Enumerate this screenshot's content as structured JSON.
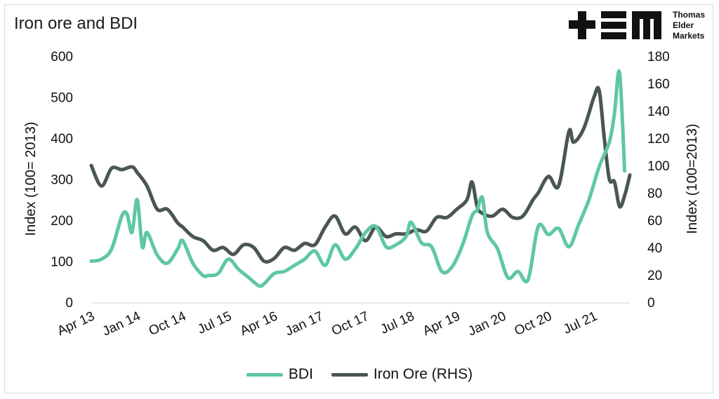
{
  "header": {
    "title": "Iron ore and BDI",
    "logo_lines": [
      "Thomas",
      "Elder",
      "Markets"
    ]
  },
  "colors": {
    "bdi": "#5fc7a3",
    "iron_ore": "#4a5556",
    "logo": "#111111"
  },
  "chart_data": {
    "type": "line",
    "title": "Iron ore and BDI",
    "ylabel_left": "Index (100= 2013)",
    "ylabel_right": "Index (100=2013)",
    "ylim_left": [
      0,
      600
    ],
    "ylim_right": [
      0,
      180
    ],
    "yticks_left": [
      "0",
      "100",
      "200",
      "300",
      "400",
      "500",
      "600"
    ],
    "yticks_right": [
      "0",
      "20",
      "40",
      "60",
      "80",
      "100",
      "120",
      "140",
      "160",
      "180"
    ],
    "xticks": [
      "Apr 13",
      "Jan 14",
      "Oct 14",
      "Jul 15",
      "Apr 16",
      "Jan 17",
      "Oct 17",
      "Jul 18",
      "Apr 19",
      "Jan 20",
      "Oct 20",
      "Jul 21"
    ],
    "grid": false,
    "legend_position": "bottom",
    "series": [
      {
        "name": "BDI",
        "axis": "left",
        "x": [
          "2013-04",
          "2013-06",
          "2013-08",
          "2013-10",
          "2013-11",
          "2013-12",
          "2014-01",
          "2014-02",
          "2014-03",
          "2014-05",
          "2014-07",
          "2014-09",
          "2014-10",
          "2014-12",
          "2015-02",
          "2015-03",
          "2015-05",
          "2015-07",
          "2015-09",
          "2015-11",
          "2016-01",
          "2016-02",
          "2016-04",
          "2016-06",
          "2016-08",
          "2016-10",
          "2016-12",
          "2017-02",
          "2017-04",
          "2017-06",
          "2017-08",
          "2017-10",
          "2017-12",
          "2018-02",
          "2018-04",
          "2018-06",
          "2018-07",
          "2018-09",
          "2018-11",
          "2019-01",
          "2019-03",
          "2019-05",
          "2019-07",
          "2019-08",
          "2019-09",
          "2019-10",
          "2019-12",
          "2020-02",
          "2020-04",
          "2020-06",
          "2020-08",
          "2020-10",
          "2020-12",
          "2021-02",
          "2021-04",
          "2021-06",
          "2021-08",
          "2021-10",
          "2021-11",
          "2021-12",
          "2022-01"
        ],
        "values": [
          100,
          105,
          130,
          210,
          215,
          170,
          250,
          135,
          170,
          115,
          95,
          130,
          150,
          95,
          65,
          65,
          70,
          105,
          80,
          60,
          40,
          45,
          70,
          75,
          90,
          105,
          125,
          90,
          140,
          105,
          130,
          170,
          185,
          135,
          140,
          160,
          195,
          145,
          135,
          75,
          85,
          135,
          210,
          225,
          255,
          170,
          130,
          60,
          75,
          55,
          185,
          165,
          180,
          135,
          190,
          250,
          330,
          390,
          460,
          560,
          320
        ]
      },
      {
        "name": "Iron Ore (RHS)",
        "axis": "right",
        "x": [
          "2013-04",
          "2013-06",
          "2013-08",
          "2013-10",
          "2013-12",
          "2014-01",
          "2014-03",
          "2014-05",
          "2014-07",
          "2014-09",
          "2014-10",
          "2014-12",
          "2015-02",
          "2015-04",
          "2015-06",
          "2015-08",
          "2015-10",
          "2015-12",
          "2016-02",
          "2016-04",
          "2016-06",
          "2016-08",
          "2016-10",
          "2016-12",
          "2017-02",
          "2017-04",
          "2017-06",
          "2017-08",
          "2017-10",
          "2017-12",
          "2018-02",
          "2018-04",
          "2018-06",
          "2018-08",
          "2018-10",
          "2018-12",
          "2019-02",
          "2019-04",
          "2019-06",
          "2019-07",
          "2019-08",
          "2019-09",
          "2019-11",
          "2020-01",
          "2020-03",
          "2020-05",
          "2020-07",
          "2020-08",
          "2020-10",
          "2020-12",
          "2021-02",
          "2021-03",
          "2021-05",
          "2021-07",
          "2021-08",
          "2021-09",
          "2021-10",
          "2021-11",
          "2021-12",
          "2022-01",
          "2022-02"
        ],
        "values": [
          100,
          85,
          98,
          97,
          99,
          95,
          85,
          68,
          68,
          58,
          55,
          48,
          45,
          38,
          40,
          35,
          42,
          40,
          30,
          32,
          40,
          38,
          43,
          42,
          55,
          63,
          50,
          55,
          45,
          55,
          48,
          50,
          50,
          53,
          52,
          62,
          62,
          68,
          75,
          88,
          70,
          65,
          63,
          68,
          62,
          63,
          75,
          80,
          92,
          85,
          125,
          117,
          127,
          150,
          155,
          120,
          90,
          88,
          70,
          78,
          93
        ]
      }
    ]
  }
}
